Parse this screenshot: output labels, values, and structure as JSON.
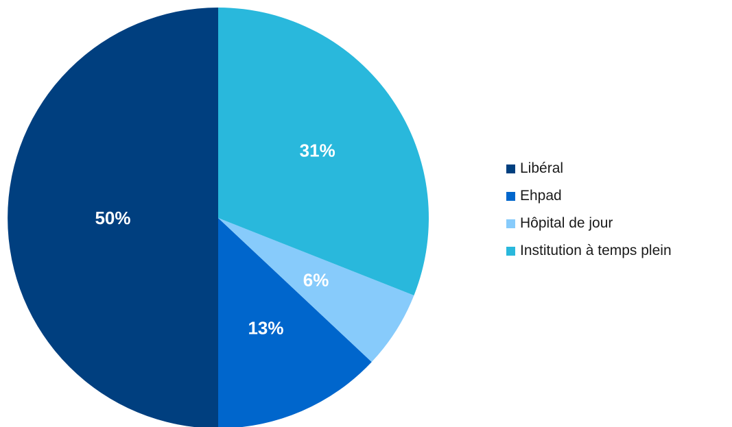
{
  "chart_data": {
    "type": "pie",
    "title": "",
    "categories": [
      "Libéral",
      "Ehpad",
      "Hôpital de jour",
      "Institution à temps plein"
    ],
    "values": [
      50,
      13,
      6,
      31
    ],
    "value_labels": [
      "50%",
      "13%",
      "6%",
      "31%"
    ],
    "colors": [
      "#003f7f",
      "#0066cc",
      "#87cbfb",
      "#29b8dc"
    ],
    "start": "12 o'clock, counter-clockwise",
    "legend_position": "right"
  }
}
